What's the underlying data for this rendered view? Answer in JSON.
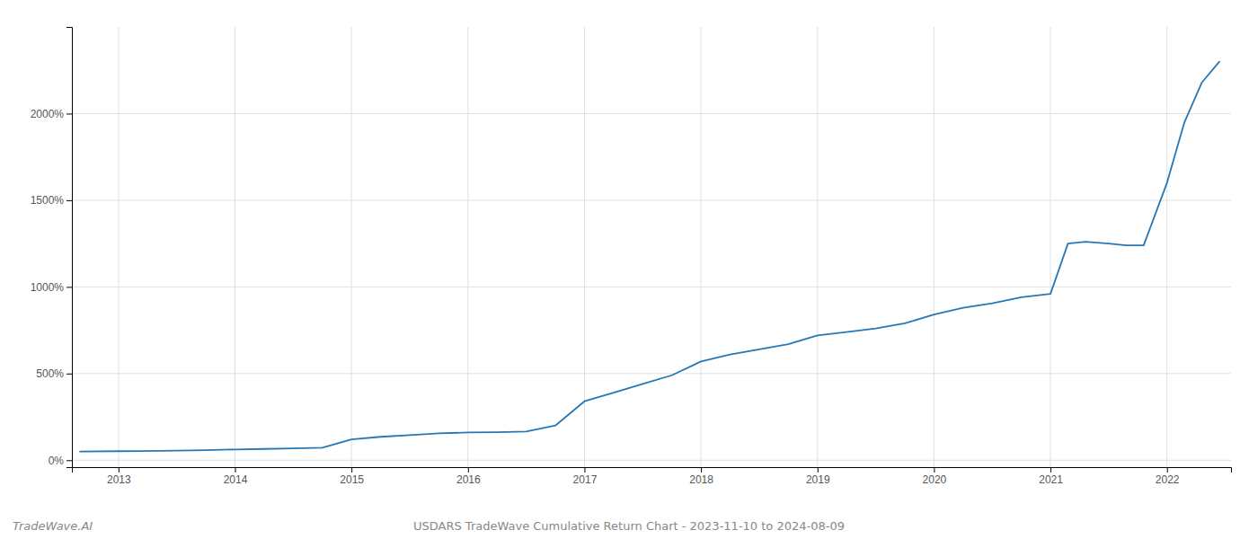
{
  "chart_data": {
    "type": "line",
    "color": "#2777b4",
    "grid": true,
    "annotations": [
      "TradeWave.AI",
      "USDARS TradeWave Cumulative Return Chart - 2023-11-10 to 2024-08-09"
    ],
    "x": [
      2012.67,
      2013.0,
      2013.2,
      2013.5,
      2013.75,
      2014.0,
      2014.25,
      2014.5,
      2014.75,
      2015.0,
      2015.25,
      2015.5,
      2015.75,
      2016.0,
      2016.25,
      2016.5,
      2016.75,
      2017.0,
      2017.25,
      2017.5,
      2017.75,
      2018.0,
      2018.25,
      2018.5,
      2018.75,
      2019.0,
      2019.25,
      2019.5,
      2019.75,
      2020.0,
      2020.25,
      2020.5,
      2020.75,
      2021.0,
      2021.15,
      2021.3,
      2021.5,
      2021.65,
      2021.8,
      2022.0,
      2022.15,
      2022.3,
      2022.45
    ],
    "values": [
      50,
      52,
      53,
      55,
      58,
      62,
      65,
      68,
      72,
      120,
      135,
      145,
      155,
      160,
      162,
      165,
      200,
      340,
      390,
      440,
      490,
      570,
      610,
      640,
      670,
      720,
      740,
      760,
      790,
      840,
      880,
      905,
      940,
      960,
      1250,
      1260,
      1250,
      1240,
      1240,
      1600,
      1950,
      2180,
      2300
    ],
    "xlim": [
      2012.6,
      2022.55
    ],
    "xticks": [
      2013,
      2014,
      2015,
      2016,
      2017,
      2018,
      2019,
      2020,
      2021,
      2022
    ],
    "ylim": [
      -40,
      2500
    ],
    "yticks": [
      {
        "value": 0,
        "label": "0%"
      },
      {
        "value": 500,
        "label": "500%"
      },
      {
        "value": 1000,
        "label": "1000%"
      },
      {
        "value": 1500,
        "label": "1500%"
      },
      {
        "value": 2000,
        "label": "2000%"
      }
    ]
  }
}
